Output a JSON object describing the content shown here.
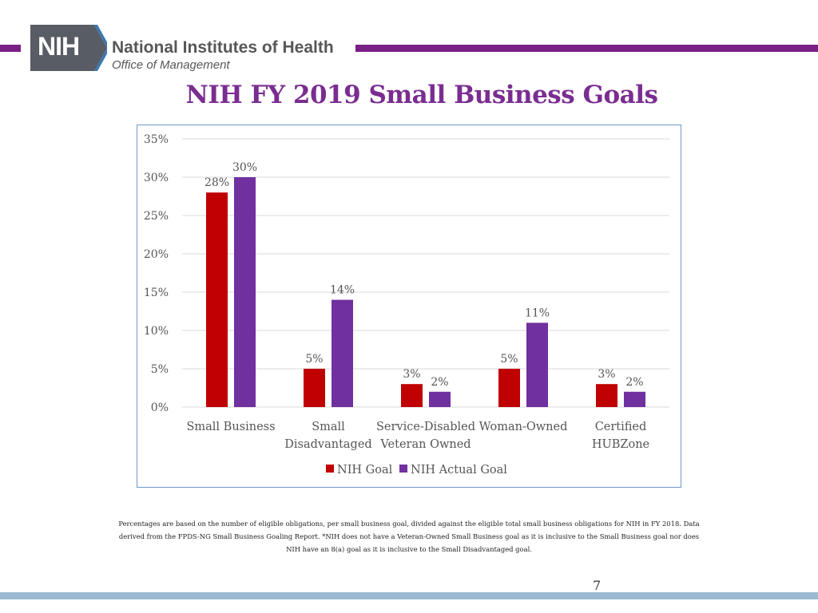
{
  "header": {
    "logo_text": "NIH",
    "org_name": "National Institutes of Health",
    "org_subtitle": "Office of Management"
  },
  "page_title": "NIH FY 2019 Small Business Goals",
  "chart_data": {
    "type": "bar",
    "title": "",
    "xlabel": "",
    "ylabel": "",
    "categories": [
      [
        "Small Business"
      ],
      [
        "Small",
        "Disadvantaged"
      ],
      [
        "Service-Disabled",
        "Veteran Owned"
      ],
      [
        "Woman-Owned"
      ],
      [
        "Certified",
        "HUBZone"
      ]
    ],
    "series": [
      {
        "name": "NIH Goal",
        "color": "#c00000",
        "values": [
          28,
          5,
          3,
          5,
          3
        ]
      },
      {
        "name": "NIH Actual Goal",
        "color": "#7030a0",
        "values": [
          30,
          14,
          2,
          11,
          2
        ]
      }
    ],
    "ylim": [
      0,
      35
    ],
    "yticks": [
      0,
      5,
      10,
      15,
      20,
      25,
      30,
      35
    ],
    "tick_suffix": "%",
    "grid": true,
    "legend_position": "bottom"
  },
  "footnote": "Percentages are based on the number of eligible obligations, per small business goal, divided against the eligible total small business obligations for NIH in FY 2018. Data derived from the FPDS-NG Small Business Goaling Report. *NIH does not have a Veteran-Owned Small Business goal as it is inclusive to the Small Business goal nor does NIH have an 8(a) goal as it is inclusive to the Small Disadvantaged goal.",
  "page_number": "7"
}
